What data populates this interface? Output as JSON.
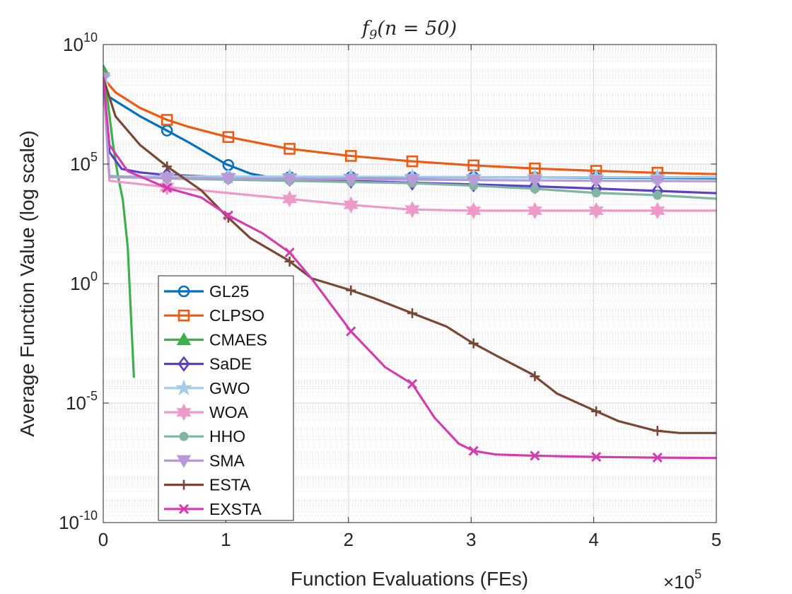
{
  "chart_data": {
    "type": "line",
    "title": "f9(n = 50)",
    "title_parts": {
      "func": "f",
      "sub": "9",
      "args": "(n = 50)"
    },
    "xlabel": "Function Evaluations (FEs)",
    "ylabel": "Average Function Value (log scale)",
    "x_multiplier": {
      "base": "×10",
      "exp": "5"
    },
    "x_unit_scale": 100000,
    "xlim": [
      0,
      5
    ],
    "x_ticks": [
      0,
      1,
      2,
      3,
      4,
      5
    ],
    "ylim_log10": [
      -10,
      10
    ],
    "y_ticks": [
      {
        "log": 10,
        "base": "10",
        "exp": "10"
      },
      {
        "log": 5,
        "base": "10",
        "exp": "5"
      },
      {
        "log": 0,
        "base": "10",
        "exp": "0"
      },
      {
        "log": -5,
        "base": "10",
        "exp": "-5"
      },
      {
        "log": -10,
        "base": "10",
        "exp": "-10"
      }
    ],
    "grid": true,
    "legend_position": "lower-left",
    "series": [
      {
        "name": "GL25",
        "color": "#0072BD",
        "marker": "circle",
        "x": [
          0,
          0.05,
          0.3,
          0.52,
          0.7,
          1.0,
          1.2,
          1.35,
          1.5,
          2.0,
          2.5,
          3.0,
          3.5,
          4.0,
          4.5,
          5.0
        ],
        "log": [
          8.6,
          7.8,
          7.0,
          6.4,
          5.9,
          5.0,
          4.6,
          4.45,
          4.45,
          4.45,
          4.45,
          4.45,
          4.45,
          4.43,
          4.42,
          4.4
        ],
        "markers_x": [
          0.52,
          1.02,
          1.52,
          2.02,
          2.52,
          3.02,
          3.52,
          4.02,
          4.52
        ]
      },
      {
        "name": "CLPSO",
        "color": "#EE5A14",
        "marker": "square",
        "x": [
          0,
          0.1,
          0.3,
          0.52,
          0.7,
          1.0,
          1.5,
          2.0,
          2.5,
          3.0,
          3.5,
          4.0,
          4.5,
          5.0
        ],
        "log": [
          8.6,
          8.0,
          7.35,
          6.85,
          6.55,
          6.15,
          5.65,
          5.35,
          5.12,
          4.95,
          4.82,
          4.72,
          4.64,
          4.58
        ],
        "markers_x": [
          0.52,
          1.02,
          1.52,
          2.02,
          2.52,
          3.02,
          3.52,
          4.02,
          4.52
        ]
      },
      {
        "name": "CMAES",
        "color": "#3DAF4B",
        "marker": "triangle",
        "x": [
          0,
          0.04,
          0.08,
          0.12,
          0.16,
          0.2,
          0.25
        ],
        "log": [
          8.9,
          7.5,
          5.8,
          4.5,
          3.5,
          1.5,
          -3.9
        ],
        "markers_x": [
          0
        ]
      },
      {
        "name": "SaDE",
        "color": "#5B3FC6",
        "marker": "diamond",
        "x": [
          0,
          0.05,
          0.15,
          0.3,
          0.5,
          1.0,
          1.5,
          2.0,
          2.5,
          3.0,
          3.5,
          4.0,
          4.5,
          5.0
        ],
        "log": [
          8.6,
          5.5,
          4.8,
          4.65,
          4.55,
          4.45,
          4.38,
          4.3,
          4.22,
          4.15,
          4.07,
          3.98,
          3.88,
          3.78
        ],
        "markers_x": [
          0.52,
          1.02,
          1.52,
          2.02,
          2.52,
          3.02,
          3.52,
          4.02,
          4.52
        ]
      },
      {
        "name": "GWO",
        "color": "#A3CCEA",
        "marker": "star",
        "x": [
          0,
          0.05,
          0.5,
          1.0,
          2.0,
          3.0,
          4.0,
          5.0
        ],
        "log": [
          8.6,
          4.48,
          4.48,
          4.48,
          4.47,
          4.46,
          4.45,
          4.45
        ],
        "markers_x": [
          0,
          0.52,
          1.02,
          1.52,
          2.02,
          2.52,
          3.02,
          3.52,
          4.02,
          4.52
        ]
      },
      {
        "name": "WOA",
        "color": "#EE9AC8",
        "marker": "hexagram",
        "x": [
          0,
          0.05,
          0.5,
          1.0,
          1.5,
          2.0,
          2.5,
          3.0,
          3.5,
          4.0,
          4.5,
          5.0
        ],
        "log": [
          8.6,
          4.3,
          4.05,
          3.8,
          3.55,
          3.3,
          3.1,
          3.05,
          3.05,
          3.05,
          3.05,
          3.05
        ],
        "markers_x": [
          0.52,
          1.52,
          2.02,
          2.52,
          3.02,
          3.52,
          4.02,
          4.52
        ]
      },
      {
        "name": "HHO",
        "color": "#7FB5A2",
        "marker": "dot",
        "x": [
          0,
          0.05,
          0.5,
          1.0,
          1.5,
          2.0,
          2.5,
          3.0,
          3.5,
          4.0,
          4.5,
          5.0
        ],
        "log": [
          8.7,
          4.5,
          4.4,
          4.35,
          4.3,
          4.25,
          4.2,
          4.1,
          3.97,
          3.8,
          3.7,
          3.55
        ],
        "markers_x": [
          0.52,
          1.02,
          1.52,
          2.02,
          2.52,
          3.02,
          3.52,
          4.02,
          4.52
        ]
      },
      {
        "name": "SMA",
        "color": "#B99AD6",
        "marker": "triangle-down",
        "x": [
          0,
          0.05,
          0.5,
          1.0,
          2.0,
          3.0,
          4.0,
          5.0
        ],
        "log": [
          8.6,
          4.45,
          4.42,
          4.4,
          4.37,
          4.33,
          4.3,
          4.28
        ],
        "markers_x": [
          0,
          0.52,
          1.02,
          1.52,
          2.02,
          2.52,
          3.02,
          3.52,
          4.02,
          4.52
        ]
      },
      {
        "name": "ESTA",
        "color": "#7A4734",
        "marker": "plus",
        "x": [
          0,
          0.1,
          0.3,
          0.52,
          0.8,
          1.0,
          1.2,
          1.5,
          1.7,
          2.0,
          2.2,
          2.5,
          2.8,
          3.0,
          3.2,
          3.5,
          3.7,
          4.0,
          4.2,
          4.5,
          4.7,
          5.0
        ],
        "log": [
          8.6,
          7.0,
          5.8,
          4.9,
          3.9,
          2.85,
          1.9,
          1.0,
          0.22,
          -0.25,
          -0.6,
          -1.2,
          -1.8,
          -2.45,
          -3.0,
          -3.8,
          -4.6,
          -5.3,
          -5.75,
          -6.15,
          -6.25,
          -6.25
        ],
        "markers_x": [
          0.52,
          1.02,
          1.52,
          2.02,
          2.52,
          3.02,
          3.52,
          4.02,
          4.52
        ]
      },
      {
        "name": "EXSTA",
        "color": "#D43DB0",
        "marker": "x",
        "x": [
          0,
          0.05,
          0.2,
          0.52,
          0.8,
          1.02,
          1.3,
          1.52,
          1.7,
          2.02,
          2.3,
          2.52,
          2.7,
          2.9,
          3.02,
          3.2,
          3.5,
          4.0,
          4.5,
          5.0
        ],
        "log": [
          8.6,
          5.8,
          4.7,
          4.0,
          3.6,
          2.85,
          2.1,
          1.3,
          0.2,
          -2.0,
          -3.5,
          -4.2,
          -5.6,
          -6.7,
          -7.0,
          -7.15,
          -7.2,
          -7.25,
          -7.28,
          -7.3
        ],
        "markers_x": [
          0.52,
          1.02,
          1.52,
          2.02,
          2.52,
          3.02,
          3.52,
          4.02,
          4.52
        ]
      }
    ]
  }
}
